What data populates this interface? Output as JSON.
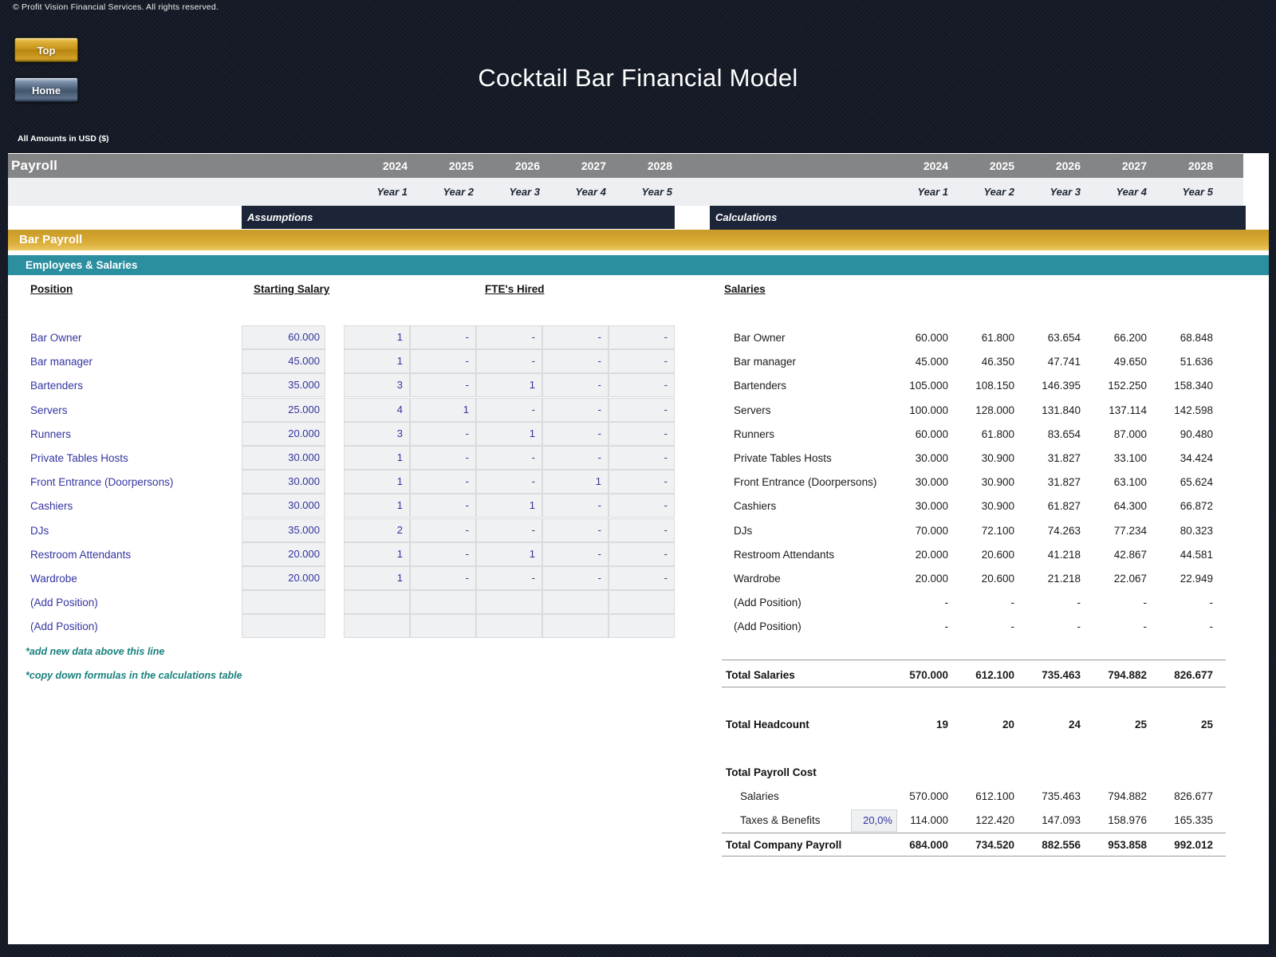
{
  "header": {
    "copyright": "© Profit Vision Financial Services. All rights reserved.",
    "top_button": "Top",
    "home_button": "Home",
    "title": "Cocktail Bar Financial Model",
    "amounts_note": "All Amounts in  USD ($)"
  },
  "section": {
    "payroll_label": "Payroll",
    "years": [
      "2024",
      "2025",
      "2026",
      "2027",
      "2028"
    ],
    "year_labels": [
      "Year 1",
      "Year 2",
      "Year 3",
      "Year 4",
      "Year 5"
    ],
    "assumptions_label": "Assumptions",
    "calculations_label": "Calculations",
    "bar_payroll_label": "Bar Payroll",
    "employees_salaries_label": "Employees & Salaries"
  },
  "left_table": {
    "headers": {
      "position": "Position",
      "starting_salary": "Starting Salary",
      "ftes_hired": "FTE's Hired"
    },
    "rows": [
      {
        "position": "Bar Owner",
        "starting_salary": "60.000",
        "ftes": [
          "1",
          "-",
          "-",
          "-",
          "-"
        ]
      },
      {
        "position": "Bar manager",
        "starting_salary": "45.000",
        "ftes": [
          "1",
          "-",
          "-",
          "-",
          "-"
        ]
      },
      {
        "position": "Bartenders",
        "starting_salary": "35.000",
        "ftes": [
          "3",
          "-",
          "1",
          "-",
          "-"
        ]
      },
      {
        "position": "Servers",
        "starting_salary": "25.000",
        "ftes": [
          "4",
          "1",
          "-",
          "-",
          "-"
        ]
      },
      {
        "position": "Runners",
        "starting_salary": "20.000",
        "ftes": [
          "3",
          "-",
          "1",
          "-",
          "-"
        ]
      },
      {
        "position": "Private Tables Hosts",
        "starting_salary": "30.000",
        "ftes": [
          "1",
          "-",
          "-",
          "-",
          "-"
        ]
      },
      {
        "position": "Front Entrance (Doorpersons)",
        "starting_salary": "30.000",
        "ftes": [
          "1",
          "-",
          "-",
          "1",
          "-"
        ]
      },
      {
        "position": "Cashiers",
        "starting_salary": "30.000",
        "ftes": [
          "1",
          "-",
          "1",
          "-",
          "-"
        ]
      },
      {
        "position": "DJs",
        "starting_salary": "35.000",
        "ftes": [
          "2",
          "-",
          "-",
          "-",
          "-"
        ]
      },
      {
        "position": "Restroom Attendants",
        "starting_salary": "20.000",
        "ftes": [
          "1",
          "-",
          "1",
          "-",
          "-"
        ]
      },
      {
        "position": "Wardrobe",
        "starting_salary": "20.000",
        "ftes": [
          "1",
          "-",
          "-",
          "-",
          "-"
        ]
      },
      {
        "position": "(Add Position)",
        "starting_salary": "",
        "ftes": [
          "",
          "",
          "",
          "",
          ""
        ]
      },
      {
        "position": "(Add Position)",
        "starting_salary": "",
        "ftes": [
          "",
          "",
          "",
          "",
          ""
        ]
      }
    ],
    "notes": [
      "*add new data above this line",
      "*copy down formulas in the calculations table"
    ]
  },
  "right_table": {
    "header": "Salaries",
    "rows": [
      {
        "label": "Bar Owner",
        "values": [
          "60.000",
          "61.800",
          "63.654",
          "66.200",
          "68.848"
        ]
      },
      {
        "label": "Bar manager",
        "values": [
          "45.000",
          "46.350",
          "47.741",
          "49.650",
          "51.636"
        ]
      },
      {
        "label": "Bartenders",
        "values": [
          "105.000",
          "108.150",
          "146.395",
          "152.250",
          "158.340"
        ]
      },
      {
        "label": "Servers",
        "values": [
          "100.000",
          "128.000",
          "131.840",
          "137.114",
          "142.598"
        ]
      },
      {
        "label": "Runners",
        "values": [
          "60.000",
          "61.800",
          "83.654",
          "87.000",
          "90.480"
        ]
      },
      {
        "label": "Private Tables Hosts",
        "values": [
          "30.000",
          "30.900",
          "31.827",
          "33.100",
          "34.424"
        ]
      },
      {
        "label": "Front Entrance (Doorpersons)",
        "values": [
          "30.000",
          "30.900",
          "31.827",
          "63.100",
          "65.624"
        ]
      },
      {
        "label": "Cashiers",
        "values": [
          "30.000",
          "30.900",
          "61.827",
          "64.300",
          "66.872"
        ]
      },
      {
        "label": "DJs",
        "values": [
          "70.000",
          "72.100",
          "74.263",
          "77.234",
          "80.323"
        ]
      },
      {
        "label": "Restroom Attendants",
        "values": [
          "20.000",
          "20.600",
          "41.218",
          "42.867",
          "44.581"
        ]
      },
      {
        "label": "Wardrobe",
        "values": [
          "20.000",
          "20.600",
          "21.218",
          "22.067",
          "22.949"
        ]
      },
      {
        "label": "(Add Position)",
        "values": [
          "-",
          "-",
          "-",
          "-",
          "-"
        ]
      },
      {
        "label": "(Add Position)",
        "values": [
          "-",
          "-",
          "-",
          "-",
          "-"
        ]
      }
    ],
    "totals": {
      "total_salaries": {
        "label": "Total Salaries",
        "values": [
          "570.000",
          "612.100",
          "735.463",
          "794.882",
          "826.677"
        ]
      },
      "total_headcount": {
        "label": "Total Headcount",
        "values": [
          "19",
          "20",
          "24",
          "25",
          "25"
        ]
      },
      "total_payroll_cost_label": "Total Payroll Cost",
      "salaries_row": {
        "label": "Salaries",
        "values": [
          "570.000",
          "612.100",
          "735.463",
          "794.882",
          "826.677"
        ]
      },
      "taxes_benefits": {
        "label": "Taxes & Benefits",
        "rate": "20,0%",
        "values": [
          "114.000",
          "122.420",
          "147.093",
          "158.976",
          "165.335"
        ]
      },
      "total_company_payroll": {
        "label": "Total Company Payroll",
        "values": [
          "684.000",
          "734.520",
          "882.556",
          "953.858",
          "992.012"
        ]
      }
    }
  },
  "colors": {
    "page_background": "#151a26",
    "band_gray": "#848587",
    "band_dark_navy": "#1c2537",
    "band_gold": "#d5a52e",
    "band_teal": "#2b8fa0",
    "input_text_blue": "#3434a2",
    "note_teal": "#17807d",
    "top_button_gold": "#c5941c",
    "home_button_blue": "#4b5e76"
  }
}
